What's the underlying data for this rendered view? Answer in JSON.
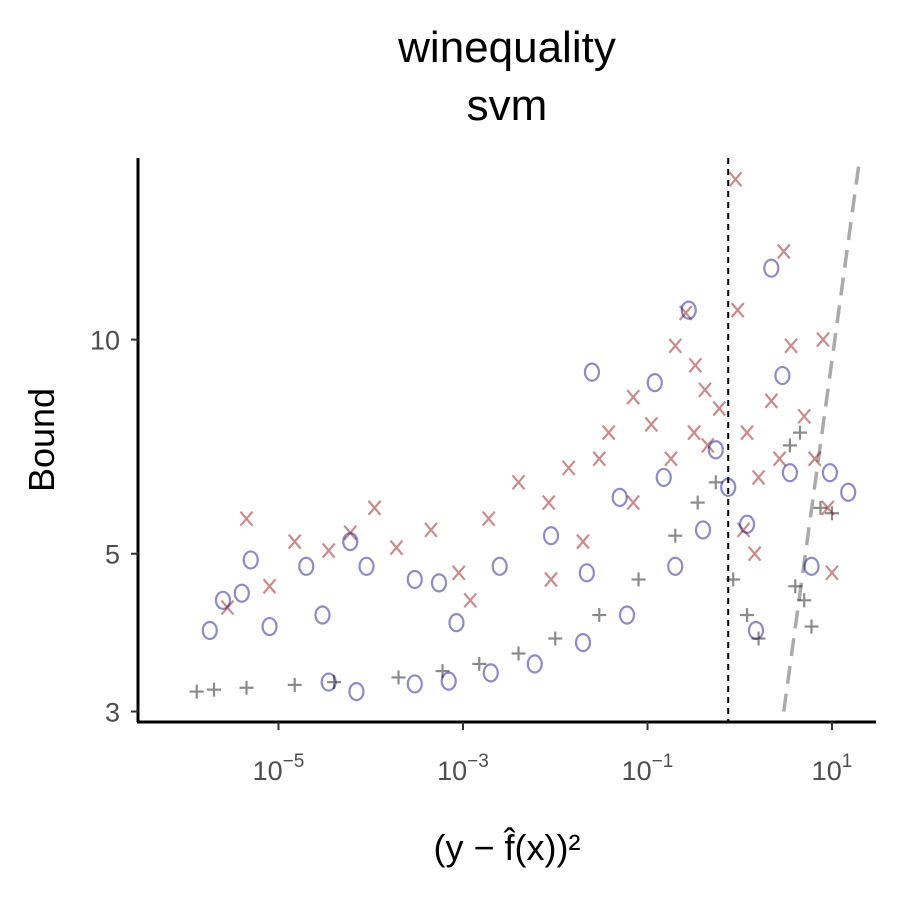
{
  "chart_data": {
    "type": "scatter",
    "title": [
      "winequality",
      "svm"
    ],
    "xlabel": "(y − f̂(x))²",
    "ylabel": "Bound",
    "x_scale": "log10",
    "y_scale": "log10",
    "xlim": [
      3e-07,
      30
    ],
    "ylim": [
      2.9,
      18
    ],
    "x_ticks": [
      {
        "value": 1e-05,
        "base": "10",
        "exp": "−5"
      },
      {
        "value": 0.001,
        "base": "10",
        "exp": "−3"
      },
      {
        "value": 0.1,
        "base": "10",
        "exp": "−1"
      },
      {
        "value": 10,
        "base": "10",
        "exp": "1"
      }
    ],
    "y_ticks": [
      {
        "value": 3,
        "label": "3"
      },
      {
        "value": 5,
        "label": "5"
      },
      {
        "value": 10,
        "label": "10"
      }
    ],
    "grid": false,
    "legend": "none",
    "reference_lines": [
      {
        "kind": "vertical",
        "x": 0.75,
        "style": "dashed",
        "color": "#000000"
      },
      {
        "kind": "curve",
        "points": [
          [
            3.0,
            3.0
          ],
          [
            20.0,
            18.0
          ]
        ],
        "style": "dashed",
        "color": "#aaaaaa"
      }
    ],
    "series": [
      {
        "marker": "x",
        "color": "#8b0000",
        "opacity": 0.45,
        "points": [
          [
            2.8e-06,
            4.2
          ],
          [
            4.5e-06,
            5.6
          ],
          [
            8e-06,
            4.5
          ],
          [
            1.5e-05,
            5.2
          ],
          [
            3.5e-05,
            5.05
          ],
          [
            6e-05,
            5.35
          ],
          [
            0.00011,
            5.8
          ],
          [
            0.00019,
            5.1
          ],
          [
            0.00045,
            5.4
          ],
          [
            0.0009,
            4.7
          ],
          [
            0.0019,
            5.6
          ],
          [
            0.004,
            6.3
          ],
          [
            0.0085,
            5.9
          ],
          [
            0.014,
            6.6
          ],
          [
            0.03,
            6.8
          ],
          [
            0.038,
            7.4
          ],
          [
            0.07,
            8.3
          ],
          [
            0.11,
            7.6
          ],
          [
            0.2,
            9.8
          ],
          [
            0.26,
            10.9
          ],
          [
            0.33,
            9.2
          ],
          [
            0.42,
            8.5
          ],
          [
            0.6,
            8.0
          ],
          [
            0.9,
            16.8
          ],
          [
            0.95,
            11.0
          ],
          [
            1.2,
            7.4
          ],
          [
            1.6,
            6.4
          ],
          [
            2.2,
            8.2
          ],
          [
            3.0,
            13.3
          ],
          [
            3.6,
            9.8
          ],
          [
            5.0,
            7.8
          ],
          [
            6.5,
            6.8
          ],
          [
            8.0,
            10.0
          ],
          [
            9.0,
            5.8
          ],
          [
            10.0,
            4.7
          ],
          [
            0.009,
            4.6
          ],
          [
            0.02,
            5.2
          ],
          [
            0.07,
            5.9
          ],
          [
            0.18,
            6.8
          ],
          [
            0.32,
            7.4
          ],
          [
            0.45,
            7.1
          ],
          [
            1.1,
            5.4
          ],
          [
            1.45,
            5.0
          ],
          [
            2.7,
            6.8
          ],
          [
            0.0012,
            4.3
          ]
        ]
      },
      {
        "marker": "o",
        "color": "#00007f",
        "opacity": 0.45,
        "points": [
          [
            1.8e-06,
            3.9
          ],
          [
            2.5e-06,
            4.3
          ],
          [
            4e-06,
            4.4
          ],
          [
            5e-06,
            4.9
          ],
          [
            8e-06,
            3.95
          ],
          [
            2e-05,
            4.8
          ],
          [
            3e-05,
            4.1
          ],
          [
            6e-05,
            5.2
          ],
          [
            9e-05,
            4.8
          ],
          [
            0.0003,
            4.6
          ],
          [
            0.00055,
            4.55
          ],
          [
            0.00085,
            4.0
          ],
          [
            0.0025,
            4.8
          ],
          [
            0.009,
            5.3
          ],
          [
            0.022,
            4.7
          ],
          [
            0.025,
            9.0
          ],
          [
            0.05,
            6.0
          ],
          [
            0.12,
            8.7
          ],
          [
            0.15,
            6.4
          ],
          [
            0.28,
            11.0
          ],
          [
            0.55,
            7.0
          ],
          [
            0.75,
            6.2
          ],
          [
            1.2,
            5.5
          ],
          [
            2.2,
            12.6
          ],
          [
            2.9,
            8.9
          ],
          [
            3.5,
            6.5
          ],
          [
            6.0,
            4.8
          ],
          [
            9.5,
            6.5
          ],
          [
            15.0,
            6.1
          ],
          [
            3.5e-05,
            3.3
          ],
          [
            7e-05,
            3.2
          ],
          [
            0.0003,
            3.28
          ],
          [
            0.0007,
            3.31
          ],
          [
            0.002,
            3.4
          ],
          [
            0.006,
            3.5
          ],
          [
            0.02,
            3.75
          ],
          [
            0.06,
            4.1
          ],
          [
            0.2,
            4.8
          ],
          [
            0.4,
            5.4
          ],
          [
            1.5,
            3.9
          ]
        ]
      },
      {
        "marker": "+",
        "color": "#000000",
        "opacity": 0.45,
        "points": [
          [
            1.3e-06,
            3.2
          ],
          [
            2e-06,
            3.22
          ],
          [
            4.5e-06,
            3.24
          ],
          [
            1.5e-05,
            3.27
          ],
          [
            4e-05,
            3.3
          ],
          [
            0.0002,
            3.35
          ],
          [
            0.0006,
            3.42
          ],
          [
            0.0015,
            3.5
          ],
          [
            0.004,
            3.62
          ],
          [
            0.01,
            3.8
          ],
          [
            0.03,
            4.1
          ],
          [
            0.08,
            4.6
          ],
          [
            0.2,
            5.3
          ],
          [
            0.35,
            5.9
          ],
          [
            0.55,
            6.3
          ],
          [
            0.85,
            4.6
          ],
          [
            1.2,
            4.1
          ],
          [
            1.6,
            3.8
          ],
          [
            4.0,
            4.5
          ],
          [
            5.0,
            4.3
          ],
          [
            6.0,
            3.95
          ],
          [
            7.5,
            5.8
          ],
          [
            3.5,
            7.1
          ],
          [
            4.5,
            7.4
          ],
          [
            10.0,
            5.7
          ]
        ]
      }
    ]
  }
}
